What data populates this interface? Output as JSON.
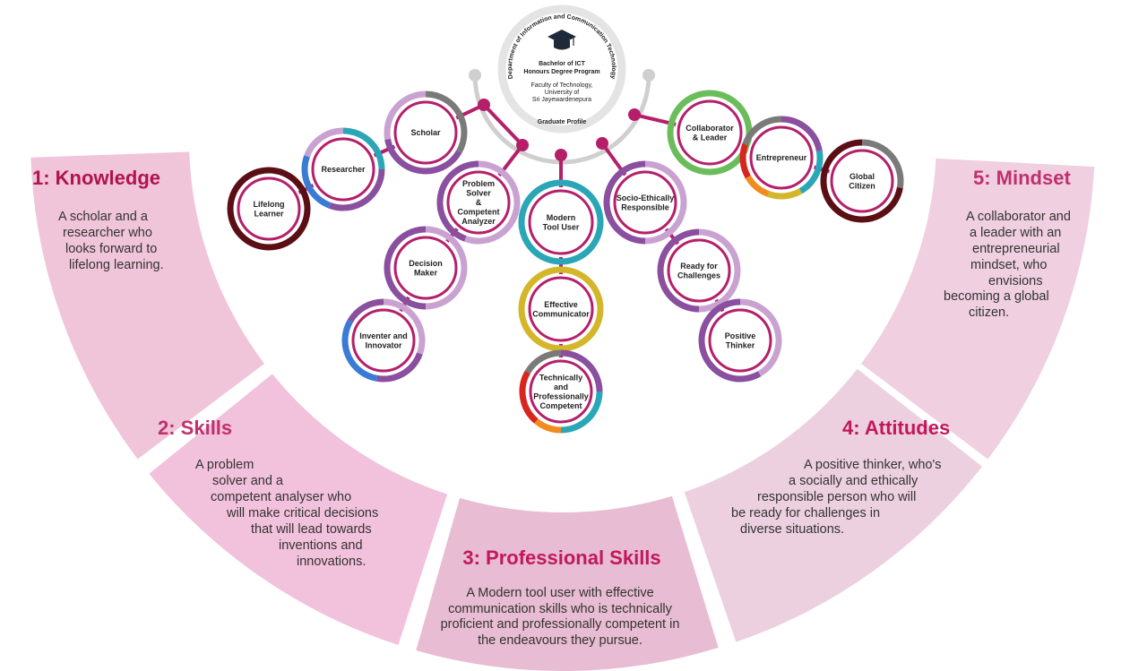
{
  "segments": [
    {
      "title": "1: Knowledge",
      "lines": [
        "A scholar and a",
        "researcher who",
        "looks forward to",
        "lifelong learning."
      ]
    },
    {
      "title": "2: Skills",
      "lines": [
        "A problem",
        "solver and a",
        "competent analyser who",
        "will make critical decisions",
        "that will lead towards",
        "inventions and",
        "innovations."
      ]
    },
    {
      "title": "3: Professional Skills",
      "lines": [
        "A Modern tool user with effective",
        "communication skills who is technically",
        "proficient and professionally competent in",
        "the endeavours they pursue."
      ]
    },
    {
      "title": "4: Attitudes",
      "lines": [
        "A positive thinker, who's",
        "a socially and ethically",
        "responsible person who will",
        "be ready for challenges in",
        "diverse situations."
      ]
    },
    {
      "title": "5: Mindset",
      "lines": [
        "A collaborator and",
        "a leader with an",
        "entrepreneurial",
        "mindset, who",
        "envisions",
        "becoming a global",
        "citizen."
      ]
    }
  ],
  "hub": {
    "arc_text": "Department of Information and Communication Technology",
    "program": [
      "Bachelor of ICT",
      "Honours Degree Program"
    ],
    "faculty": [
      "Faculty of Technology,",
      "University of",
      "Sri Jayewardenepura"
    ],
    "footer": "Graduate Profile"
  },
  "nodes": [
    {
      "label": [
        "Lifelong",
        "Learner"
      ]
    },
    {
      "label": [
        "Researcher"
      ]
    },
    {
      "label": [
        "Scholar"
      ]
    },
    {
      "label": [
        "Problem",
        "Solver",
        "&",
        "Competent",
        "Analyzer"
      ]
    },
    {
      "label": [
        "Decision",
        "Maker"
      ]
    },
    {
      "label": [
        "Inventer and",
        "Innovator"
      ]
    },
    {
      "label": [
        "Modern",
        "Tool User"
      ]
    },
    {
      "label": [
        "Effective",
        "Communicator"
      ]
    },
    {
      "label": [
        "Technically",
        "and",
        "Professionally",
        "Competent"
      ]
    },
    {
      "label": [
        "Socio-Ethically",
        "Responsible"
      ]
    },
    {
      "label": [
        "Ready for",
        "Challenges"
      ]
    },
    {
      "label": [
        "Positive",
        "Thinker"
      ]
    },
    {
      "label": [
        "Collaborator",
        "& Leader"
      ]
    },
    {
      "label": [
        "Entrepreneur"
      ]
    },
    {
      "label": [
        "Global",
        "Citizen"
      ]
    }
  ],
  "colors": {
    "accent": "#c2185b",
    "title_dark": "#b0134f",
    "title_mid": "#c0306e",
    "segment_fills": [
      "#f0c4d9",
      "#f2c1dc",
      "#e8bcd2",
      "#ecd0df",
      "#efcfe0"
    ],
    "ring_inner": "#b51f6a",
    "ring_light": "#c9a2d2",
    "ring_purple": "#8a4f9e",
    "teal": "#2aa6b7",
    "gold": "#d4b62a",
    "green": "#6bbd5b",
    "maroon": "#5b0f14",
    "grey": "#7a7a7a",
    "blue": "#3a7bd5",
    "red": "#d7261e",
    "orange": "#f08c1e",
    "hub_ring": "#e4e4e4"
  },
  "icons": {
    "hub": "graduation-cap-icon"
  }
}
